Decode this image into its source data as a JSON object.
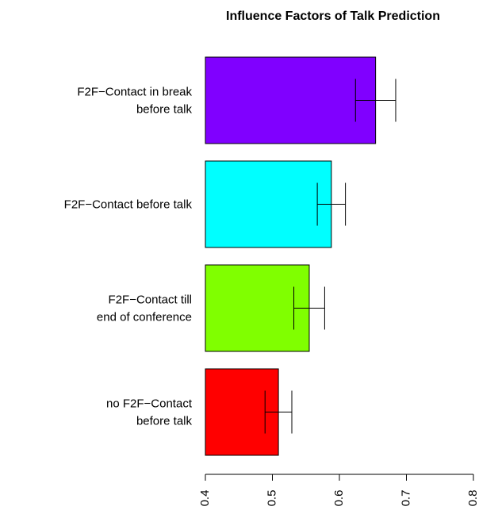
{
  "chart_data": {
    "type": "barh",
    "title": "Influence Factors of Talk Prediction",
    "categories": [
      "F2F−Contact in break\nbefore talk",
      "F2F−Contact before talk",
      "F2F−Contact till\nend of conference",
      "no F2F−Contact\nbefore talk"
    ],
    "values": [
      0.654,
      0.588,
      0.555,
      0.509
    ],
    "errors": [
      0.03,
      0.021,
      0.023,
      0.02
    ],
    "colors": [
      "#8000ff",
      "#00ffff",
      "#80ff00",
      "#ff0000"
    ],
    "xlim": [
      0.4,
      0.8
    ],
    "xticks": [
      0.4,
      0.5,
      0.6,
      0.7,
      0.8
    ]
  }
}
